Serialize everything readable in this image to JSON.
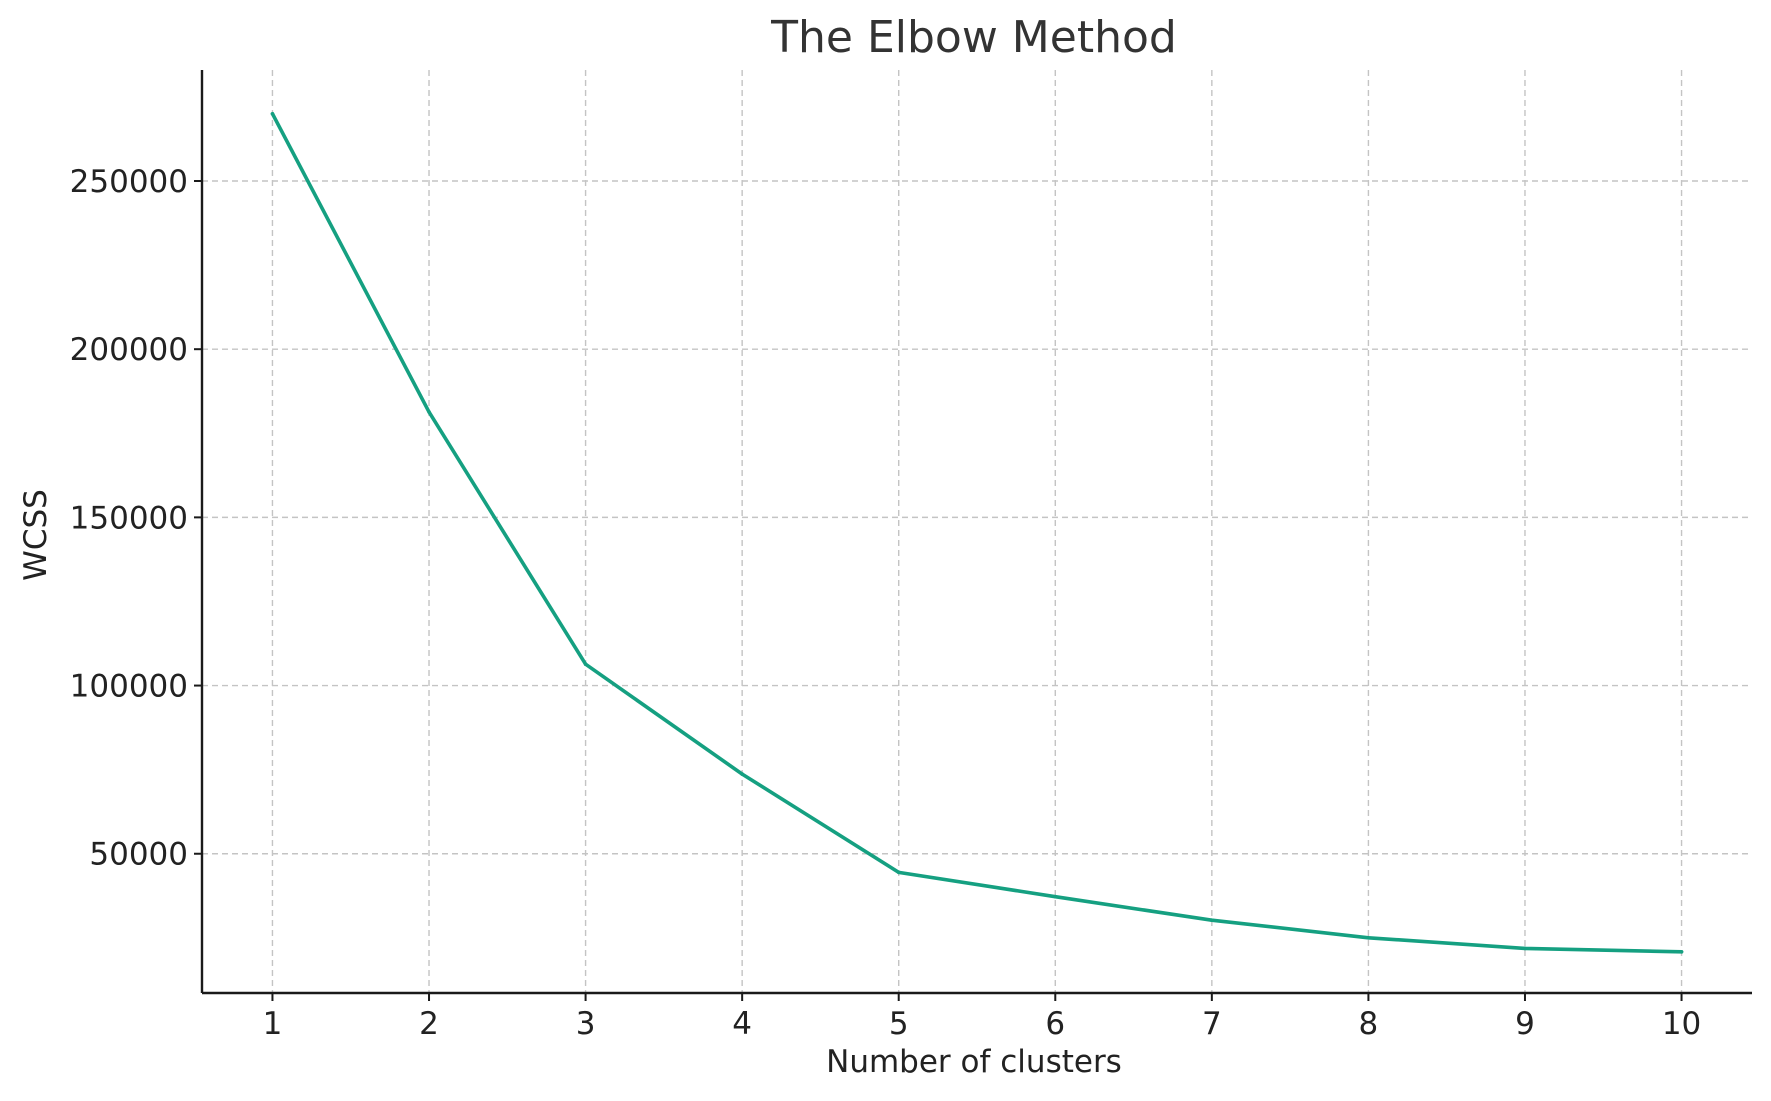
{
  "chart_data": {
    "type": "line",
    "title": "The Elbow Method",
    "xlabel": "Number of clusters",
    "ylabel": "WCSS",
    "x": [
      1,
      2,
      3,
      4,
      5,
      6,
      7,
      8,
      9,
      10
    ],
    "series": [
      {
        "values": [
          269981,
          181364,
          106348,
          73679,
          44448,
          37239,
          30241,
          25011,
          21851,
          20854
        ],
        "color": "#15a081"
      }
    ],
    "xticks": [
      1,
      2,
      3,
      4,
      5,
      6,
      7,
      8,
      9,
      10
    ],
    "xtick_labels": [
      "1",
      "2",
      "3",
      "4",
      "5",
      "6",
      "7",
      "8",
      "9",
      "10"
    ],
    "yticks": [
      50000,
      100000,
      150000,
      200000,
      250000
    ],
    "ytick_labels": [
      "50000",
      "100000",
      "150000",
      "200000",
      "250000"
    ],
    "xlim": [
      0.55,
      10.45
    ],
    "ylim": [
      8600,
      283000
    ],
    "grid": true,
    "grid_style": "dashed",
    "legend": false
  }
}
